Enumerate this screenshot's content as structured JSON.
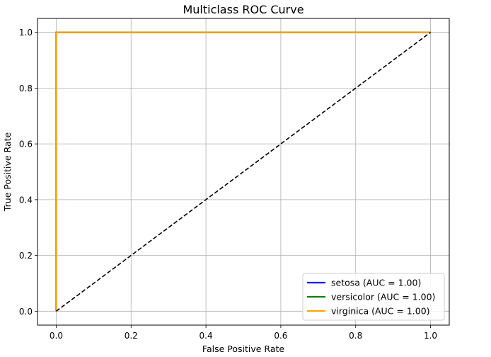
{
  "chart_data": {
    "type": "line",
    "title": "Multiclass ROC Curve",
    "xlabel": "False Positive Rate",
    "ylabel": "True Positive Rate",
    "xlim": [
      -0.05,
      1.05
    ],
    "ylim": [
      -0.05,
      1.05
    ],
    "xticks": [
      "0.0",
      "0.2",
      "0.4",
      "0.6",
      "0.8",
      "1.0"
    ],
    "yticks": [
      "0.0",
      "0.2",
      "0.4",
      "0.6",
      "0.8",
      "1.0"
    ],
    "grid": true,
    "legend_position": "lower right",
    "series": [
      {
        "name": "setosa (AUC = 1.00)",
        "color": "#0000ff",
        "x": [
          0.0,
          0.0,
          1.0
        ],
        "y": [
          0.0,
          1.0,
          1.0
        ]
      },
      {
        "name": "versicolor (AUC = 1.00)",
        "color": "#008000",
        "x": [
          0.0,
          0.0,
          1.0
        ],
        "y": [
          0.0,
          1.0,
          1.0
        ]
      },
      {
        "name": "virginica (AUC = 1.00)",
        "color": "#ffa500",
        "x": [
          0.0,
          0.0,
          1.0
        ],
        "y": [
          0.0,
          1.0,
          1.0
        ]
      }
    ],
    "reference_line": {
      "x": [
        0.0,
        1.0
      ],
      "y": [
        0.0,
        1.0
      ],
      "color": "#000000",
      "style": "dashed"
    }
  }
}
